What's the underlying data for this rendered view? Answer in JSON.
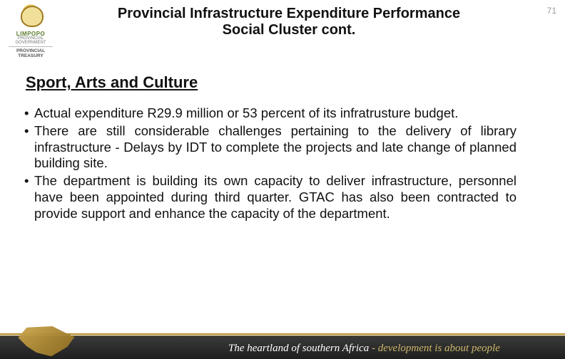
{
  "page_number": "71",
  "logo": {
    "line1": "LIMPOPO",
    "line2": "PROVINCIAL GOVERNMENT",
    "line3": "PROVINCIAL TREASURY"
  },
  "title": {
    "line1": "Provincial Infrastructure Expenditure Performance",
    "line2": "Social Cluster cont."
  },
  "section_heading": "Sport, Arts and Culture",
  "bullets": [
    "Actual expenditure R29.9 million or 53 percent of its infratrusture budget.",
    "There are still considerable challenges pertaining to the delivery of library infrastructure - Delays by IDT to complete the projects and late change of planned building site.",
    "The department is building its own capacity to deliver infrastructure, personnel have been appointed during third quarter. GTAC has also been contracted to provide support and enhance the capacity of the department."
  ],
  "footer": {
    "lead": "The heartland of southern Africa",
    "dash": " - ",
    "tag": "development is about people"
  },
  "colors": {
    "accent_gold": "#b58a22",
    "footer_bg": "#2a2a2a",
    "page_num": "#9a9a9a"
  }
}
